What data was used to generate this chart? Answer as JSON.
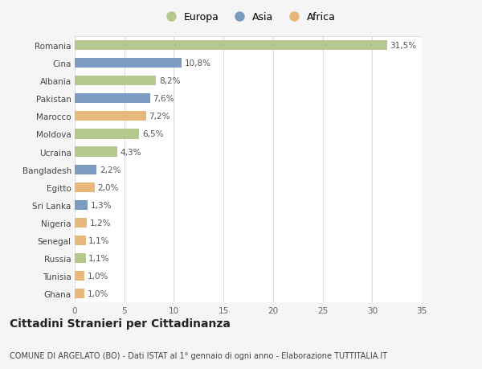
{
  "countries": [
    "Romania",
    "Cina",
    "Albania",
    "Pakistan",
    "Marocco",
    "Moldova",
    "Ucraina",
    "Bangladesh",
    "Egitto",
    "Sri Lanka",
    "Nigeria",
    "Senegal",
    "Russia",
    "Tunisia",
    "Ghana"
  ],
  "values": [
    31.5,
    10.8,
    8.2,
    7.6,
    7.2,
    6.5,
    4.3,
    2.2,
    2.0,
    1.3,
    1.2,
    1.1,
    1.1,
    1.0,
    1.0
  ],
  "labels": [
    "31,5%",
    "10,8%",
    "8,2%",
    "7,6%",
    "7,2%",
    "6,5%",
    "4,3%",
    "2,2%",
    "2,0%",
    "1,3%",
    "1,2%",
    "1,1%",
    "1,1%",
    "1,0%",
    "1,0%"
  ],
  "continents": [
    "Europa",
    "Asia",
    "Europa",
    "Asia",
    "Africa",
    "Europa",
    "Europa",
    "Asia",
    "Africa",
    "Asia",
    "Africa",
    "Africa",
    "Europa",
    "Africa",
    "Africa"
  ],
  "colors": {
    "Europa": "#b5c98e",
    "Asia": "#7b9cc0",
    "Africa": "#e8b87a"
  },
  "legend_order": [
    "Europa",
    "Asia",
    "Africa"
  ],
  "xlim": [
    0,
    35
  ],
  "xticks": [
    0,
    5,
    10,
    15,
    20,
    25,
    30,
    35
  ],
  "title": "Cittadini Stranieri per Cittadinanza",
  "subtitle": "COMUNE DI ARGELATO (BO) - Dati ISTAT al 1° gennaio di ogni anno - Elaborazione TUTTITALIA.IT",
  "bg_color": "#f5f5f5",
  "bar_bg_color": "#ffffff",
  "grid_color": "#dddddd",
  "label_fontsize": 7.5,
  "tick_fontsize": 7.5,
  "title_fontsize": 10,
  "subtitle_fontsize": 7
}
